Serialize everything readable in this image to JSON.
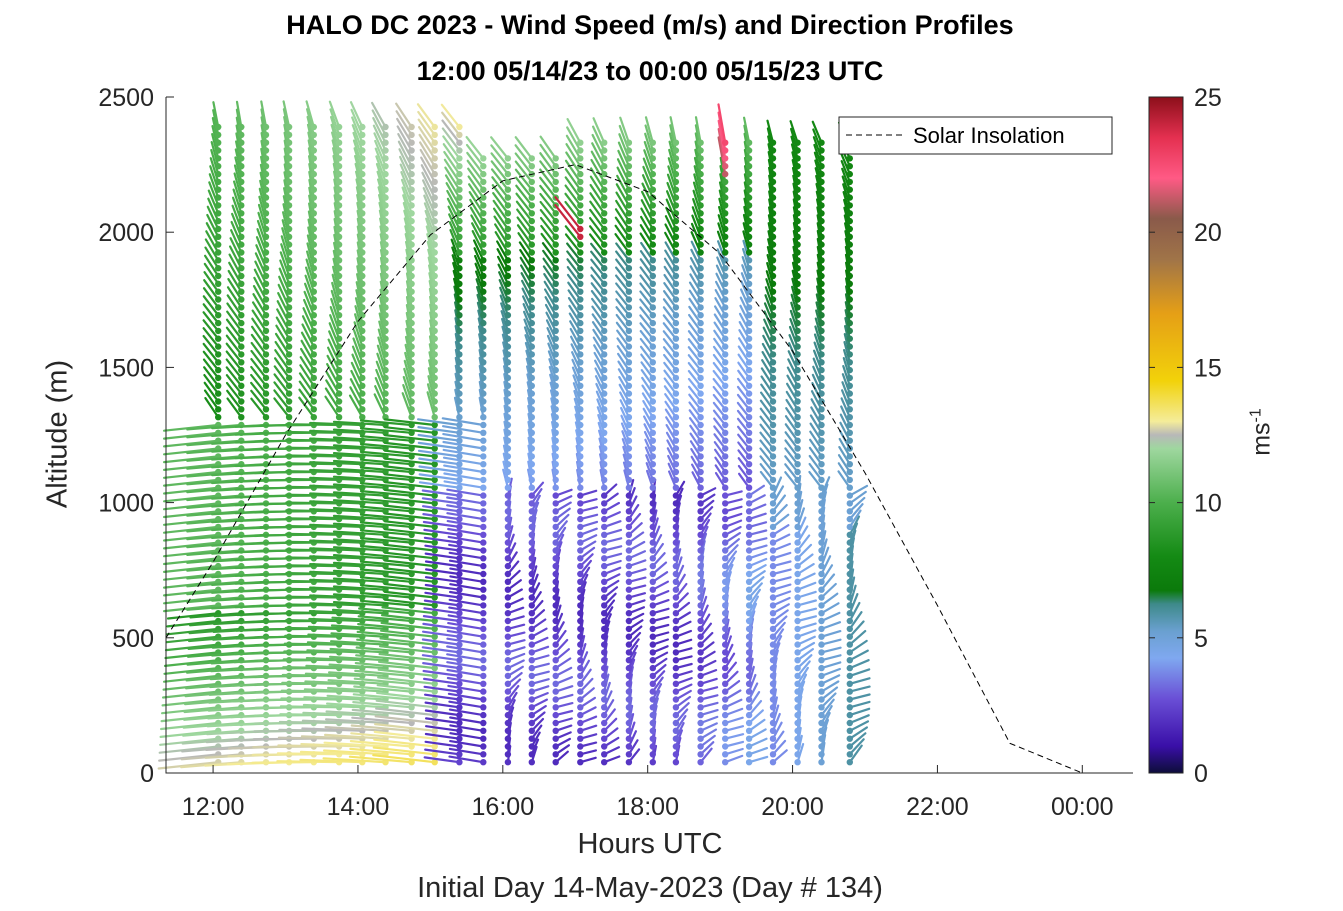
{
  "title_line1": "HALO DC 2023 - Wind Speed (m/s) and Direction Profiles",
  "title_line2": "12:00 05/14/23 to 00:00 05/15/23  UTC",
  "footnote": "Initial Day 14-May-2023 (Day # 134)",
  "colorbar": {
    "label_base": "ms",
    "label_exp": "-1",
    "ticks": [
      "0",
      "5",
      "10",
      "15",
      "20",
      "25"
    ],
    "range": [
      0,
      25
    ]
  },
  "chart_data": {
    "type": "scatter",
    "xlabel": "Hours UTC",
    "ylabel": "Altitude (m)",
    "xlim": [
      11.35,
      24.7
    ],
    "ylim": [
      0,
      2500
    ],
    "xticks": [
      "12:00",
      "14:00",
      "16:00",
      "18:00",
      "20:00",
      "22:00",
      "00:00"
    ],
    "xtick_values": [
      12,
      14,
      16,
      18,
      20,
      22,
      24
    ],
    "yticks": [
      "0",
      "500",
      "1000",
      "1500",
      "2000",
      "2500"
    ],
    "ytick_values": [
      0,
      500,
      1000,
      1500,
      2000,
      2500
    ],
    "grid": false,
    "legend": {
      "location": "top-right",
      "entries": [
        "Solar Insolation"
      ]
    },
    "solar_insolation": {
      "style": "dashed",
      "color": "#000000",
      "x": [
        11.35,
        12,
        13,
        14,
        15,
        16,
        17,
        18,
        19,
        20,
        21,
        22,
        23,
        24,
        24.7
      ],
      "y": [
        500,
        780,
        1250,
        1670,
        1990,
        2190,
        2250,
        2150,
        1920,
        1560,
        1110,
        620,
        110,
        0,
        0
      ]
    },
    "profile_times": [
      12.07,
      12.39,
      12.73,
      13.05,
      13.39,
      13.74,
      14.06,
      14.38,
      14.74,
      15.06,
      15.4,
      15.73,
      16.07,
      16.4,
      16.73,
      17.07,
      17.4,
      17.74,
      18.07,
      18.39,
      18.73,
      19.07,
      19.4,
      19.73,
      20.07,
      20.4,
      20.79
    ],
    "wind_speed_summary": [
      {
        "hours": "12:00-15:00",
        "altitude_m": "0-500",
        "speed_ms": "8-14"
      },
      {
        "hours": "16:00-19:30",
        "altitude_m": "0-1000",
        "speed_ms": "1-4"
      },
      {
        "hours": "12:00-15:00",
        "altitude_m": "1500-2400",
        "speed_ms": "7-13"
      },
      {
        "hours": "14:00-16:30",
        "altitude_m": "2000-2400",
        "speed_ms": "13-17"
      },
      {
        "hours": "17:00-19:00",
        "altitude_m": "2000-2450",
        "speed_ms": "20-25"
      }
    ]
  }
}
